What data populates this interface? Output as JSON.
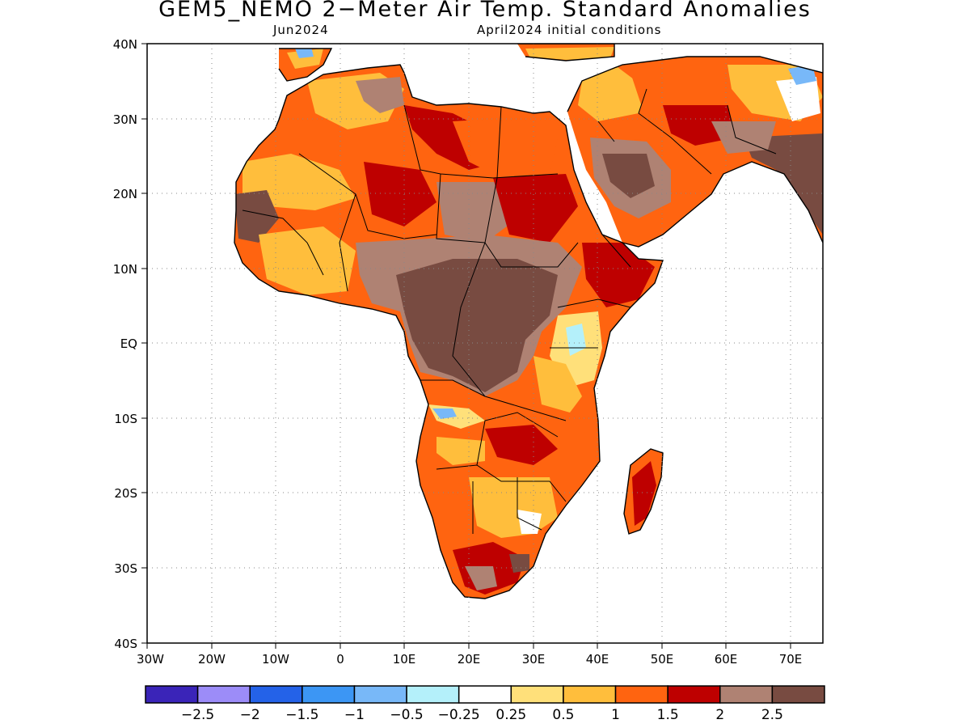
{
  "header": {
    "title": "GEM5_NEMO 2−Meter Air Temp. Standard Anomalies",
    "valid_month": "Jun2024",
    "init_conditions": "April2024 initial conditions"
  },
  "map": {
    "lat_labels": [
      "40N",
      "30N",
      "20N",
      "10N",
      "EQ",
      "10S",
      "20S",
      "30S",
      "40S"
    ],
    "lon_labels": [
      "30W",
      "20W",
      "10W",
      "0",
      "10E",
      "20E",
      "30E",
      "40E",
      "50E",
      "60E",
      "70E"
    ],
    "lat_range": [
      -40,
      40
    ],
    "lon_range": [
      -30,
      75
    ],
    "grid": "dotted",
    "projection": "cylindrical equidistant"
  },
  "colorbar": {
    "colors": [
      "#3a24b8",
      "#9c8cf8",
      "#2462e8",
      "#3c96f4",
      "#78b8f8",
      "#b4f0fa",
      "#ffffff",
      "#ffe07a",
      "#ffbe3c",
      "#ff6410",
      "#be0000",
      "#af8273",
      "#784b41"
    ],
    "labels": [
      "−2.5",
      "−2",
      "−1.5",
      "−1",
      "−0.5",
      "−0.25",
      "0.25",
      "0.5",
      "1",
      "1.5",
      "2",
      "2.5"
    ]
  }
}
